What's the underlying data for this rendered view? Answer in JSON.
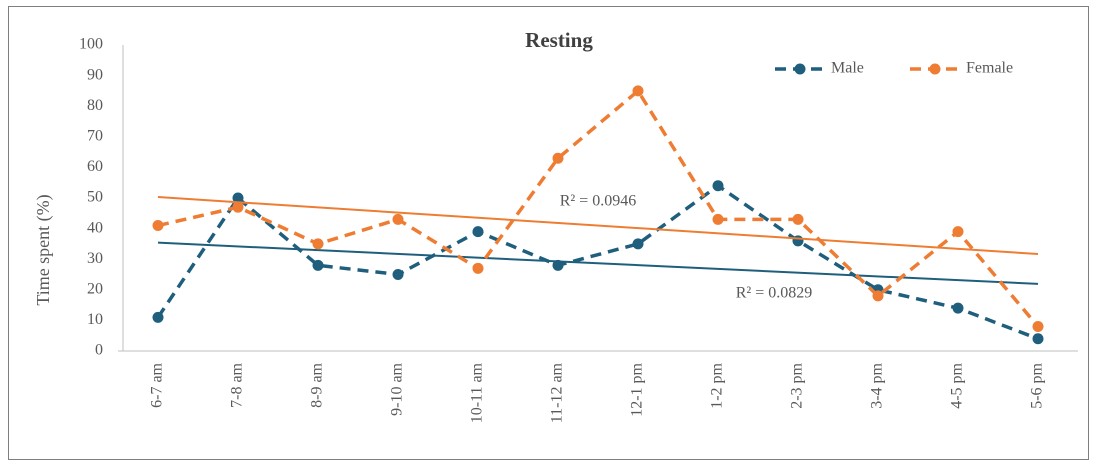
{
  "chart_data": {
    "type": "line",
    "title": "Resting",
    "ylabel": "Time spent (%)",
    "categories": [
      "6-7 am",
      "7-8 am",
      "8-9 am",
      "9-10 am",
      "10-11 am",
      "11-12 am",
      "12-1 pm",
      "1-2 pm",
      "2-3 pm",
      "3-4 pm",
      "4-5 pm",
      "5-6 pm"
    ],
    "series": [
      {
        "name": "Male",
        "color": "#1f5f7d",
        "trendline": "linear",
        "values": [
          11,
          50,
          28,
          25,
          39,
          28,
          35,
          54,
          36,
          20,
          14,
          4
        ]
      },
      {
        "name": "Female",
        "color": "#ee7d33",
        "trendline": "linear",
        "values": [
          41,
          47,
          35,
          43,
          27,
          63,
          85,
          43,
          43,
          18,
          39,
          8
        ]
      }
    ],
    "annotations": [
      "R² = 0.0946",
      "R² = 0.0829"
    ],
    "ylim": [
      0,
      100
    ],
    "yticks": [
      0,
      10,
      20,
      30,
      40,
      50,
      60,
      70,
      80,
      90,
      100
    ],
    "grid": false,
    "legend": "top-right"
  }
}
